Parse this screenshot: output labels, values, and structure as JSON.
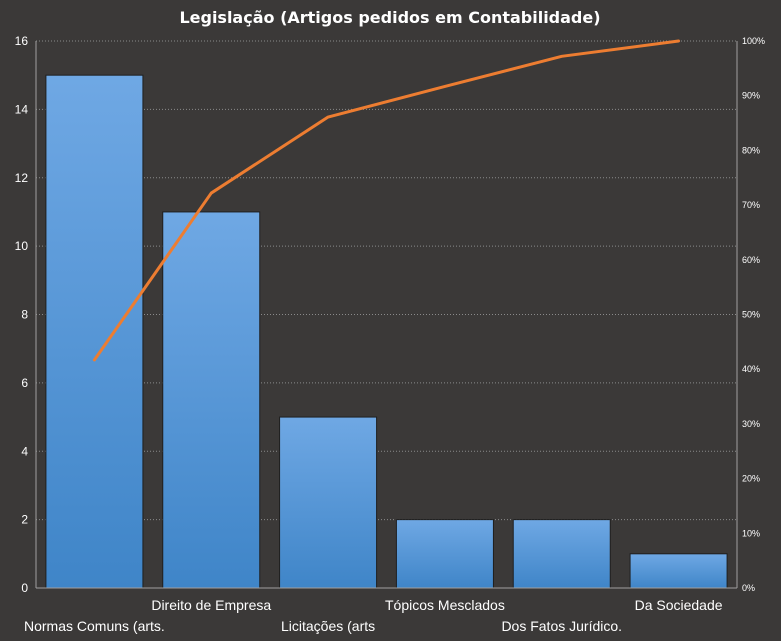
{
  "chart_data": {
    "type": "bar",
    "title": "Legislação (Artigos pedidos em Contabilidade)",
    "categories": [
      "Normas Comuns (arts.",
      "Direito de Empresa",
      "Licitações (arts",
      "Tópicos Mesclados",
      "Dos Fatos Jurídico.",
      "Da Sociedade"
    ],
    "values": [
      15,
      11,
      5,
      2,
      2,
      1
    ],
    "ylim": [
      0,
      16
    ],
    "yticks": [
      "0",
      "2",
      "4",
      "6",
      "8",
      "10",
      "12",
      "14",
      "16"
    ],
    "secondary_axis": {
      "ylim": [
        0,
        100
      ],
      "ticks": [
        "0%",
        "10%",
        "20%",
        "30%",
        "40%",
        "50%",
        "60%",
        "70%",
        "80%",
        "90%",
        "100%"
      ]
    },
    "series": [
      {
        "type": "bar",
        "values": [
          15,
          11,
          5,
          2,
          2,
          1
        ]
      },
      {
        "type": "line",
        "axis": "secondary",
        "values": [
          41.7,
          72.2,
          86.1,
          91.7,
          97.2,
          100
        ]
      }
    ],
    "grid": true,
    "legend": "none",
    "colors": {
      "background": "#3b3938",
      "bar_top": "#6fa8e4",
      "bar_bottom": "#3f85c8",
      "line": "#ed7d31",
      "text": "#ffffff"
    }
  }
}
